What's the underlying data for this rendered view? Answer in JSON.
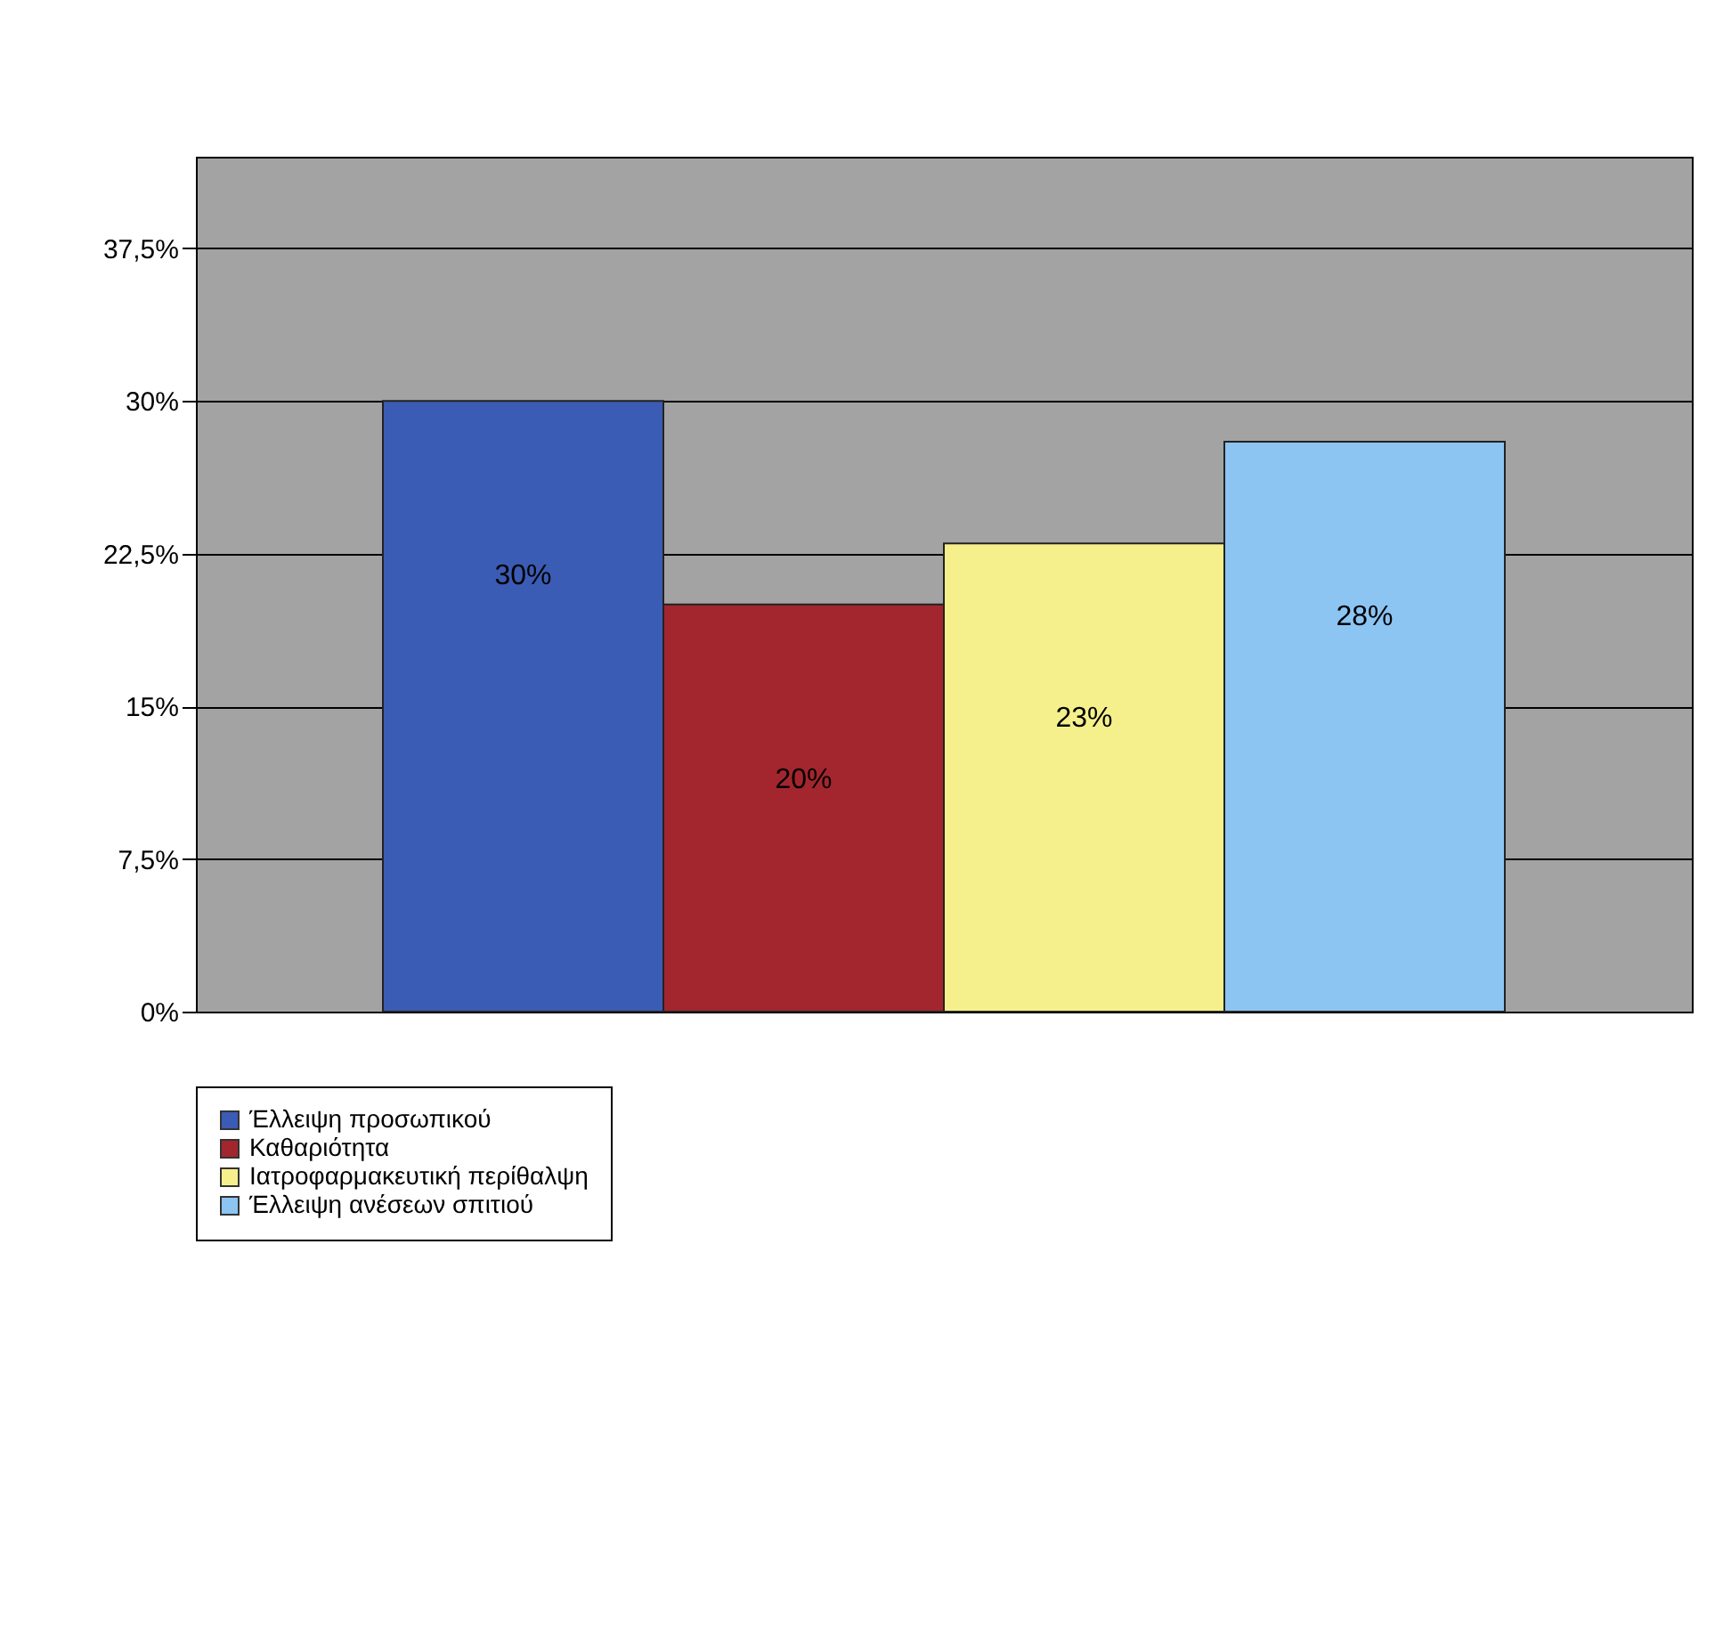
{
  "chart_data": {
    "type": "bar",
    "categories": [
      null
    ],
    "series": [
      {
        "name": "Έλλειψη προσωπικού",
        "color": "#3b5cb4",
        "values": [
          30
        ],
        "value_labels": [
          "30%"
        ]
      },
      {
        "name": "Καθαριότητα",
        "color": "#a3262e",
        "values": [
          20
        ],
        "value_labels": [
          "20%"
        ]
      },
      {
        "name": "Ιατροφαρμακευτική περίθαλψη",
        "color": "#f5f08c",
        "values": [
          23
        ],
        "value_labels": [
          "23%"
        ]
      },
      {
        "name": "Έλλειψη ανέσεων σπιτιού",
        "color": "#8cc4f2",
        "values": [
          28
        ],
        "value_labels": [
          "28%"
        ]
      }
    ],
    "ylim": [
      0,
      42
    ],
    "yticks": [
      {
        "value": 0,
        "label": "0%"
      },
      {
        "value": 7.5,
        "label": "7,5%"
      },
      {
        "value": 15,
        "label": "15%"
      },
      {
        "value": 22.5,
        "label": "22,5%"
      },
      {
        "value": 30,
        "label": "30%"
      },
      {
        "value": 37.5,
        "label": "37,5%"
      }
    ],
    "grid": "y",
    "legend": "bottom"
  }
}
